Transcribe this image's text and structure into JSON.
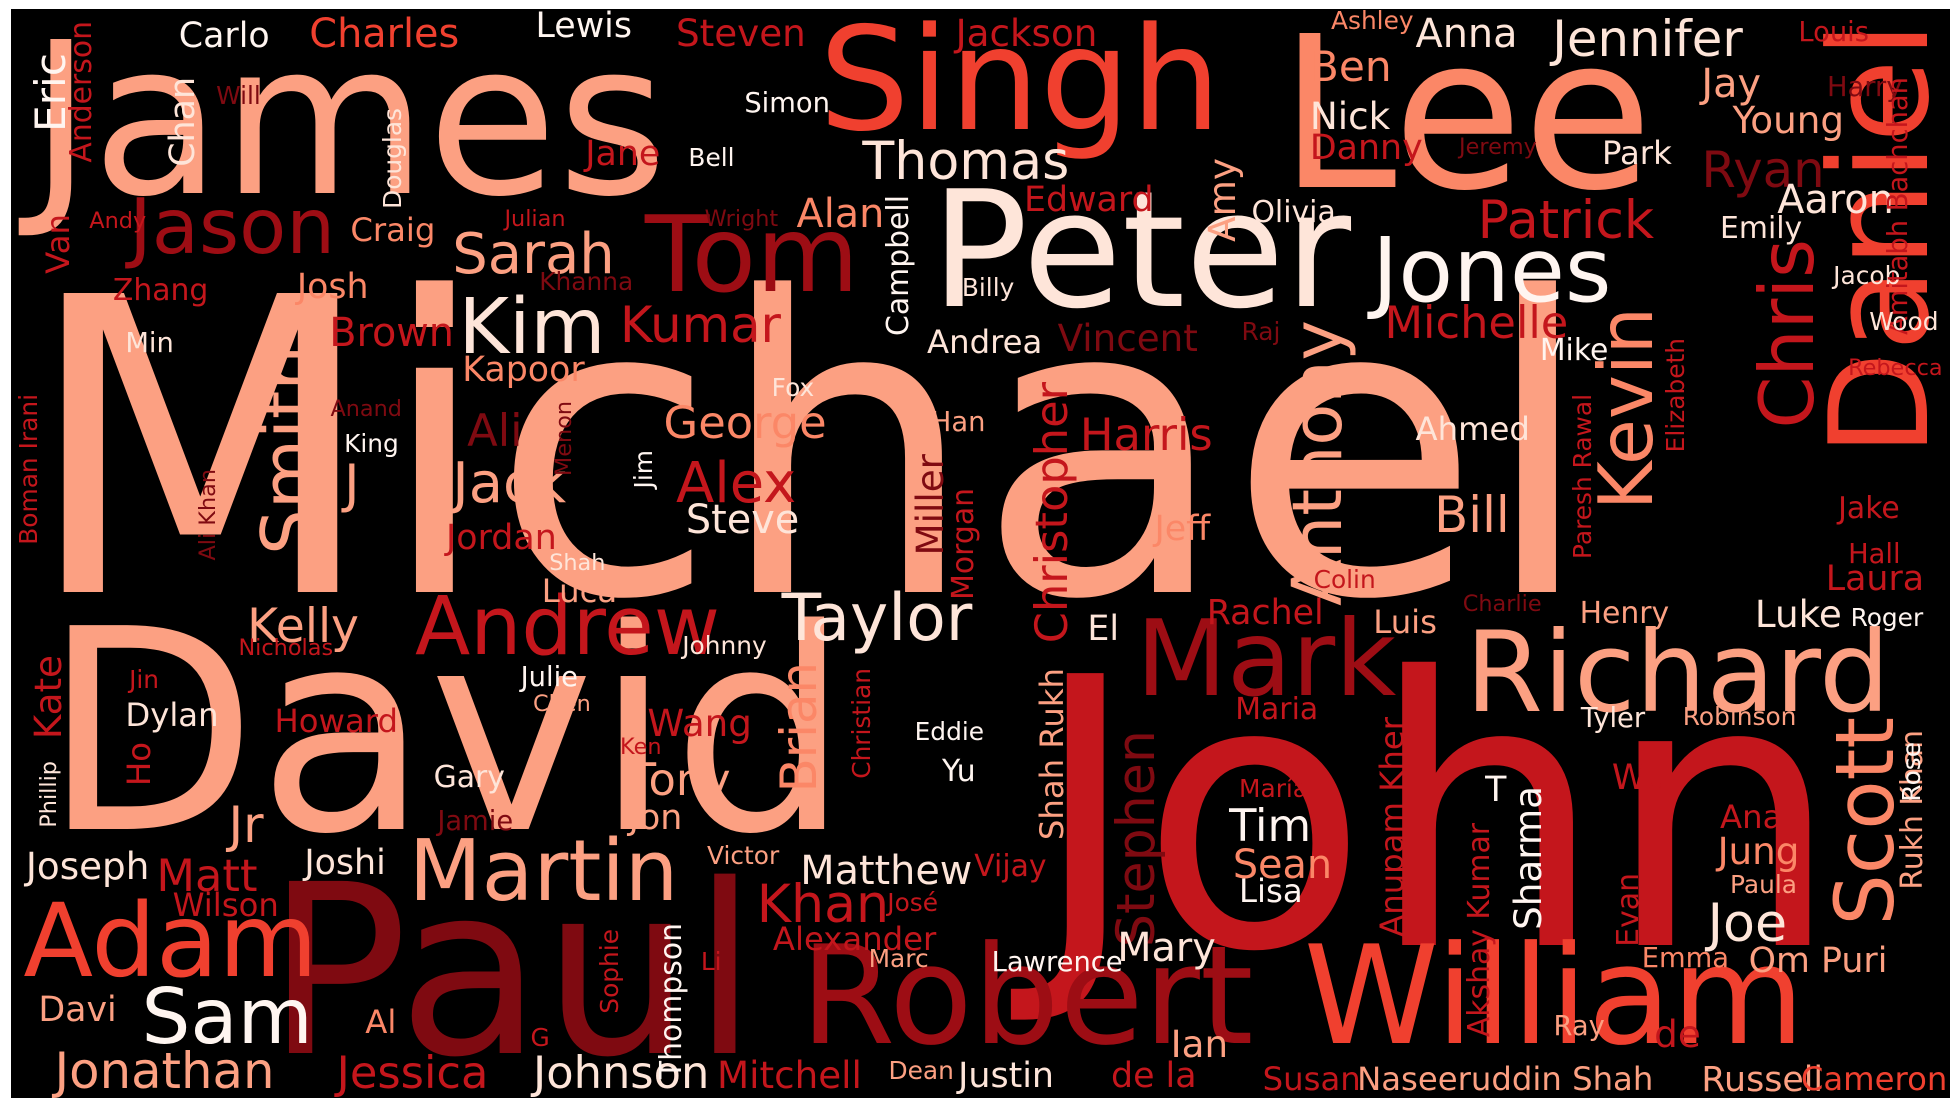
{
  "colors": {
    "background": "#000000",
    "light_salmon": "#fca082",
    "salmon": "#fb8767",
    "orange_red": "#f0402f",
    "crimson": "#c4161c",
    "dark_red": "#9d0d14",
    "deep_red": "#7f0a11",
    "pale": "#fee5d9",
    "white": "#fff5f0"
  },
  "words": [
    {
      "id": "michael",
      "text": "Michael"
    },
    {
      "id": "david",
      "text": "David"
    },
    {
      "id": "john",
      "text": "John"
    },
    {
      "id": "james",
      "text": "James"
    },
    {
      "id": "paul",
      "text": "Paul"
    },
    {
      "id": "lee",
      "text": "Lee"
    },
    {
      "id": "singh",
      "text": "Singh"
    },
    {
      "id": "peter",
      "text": "Peter"
    },
    {
      "id": "robert",
      "text": "Robert"
    },
    {
      "id": "william",
      "text": "William"
    },
    {
      "id": "daniel",
      "text": "Daniel"
    },
    {
      "id": "richard",
      "text": "Richard"
    },
    {
      "id": "mark",
      "text": "Mark"
    },
    {
      "id": "tom",
      "text": "Tom"
    },
    {
      "id": "jason",
      "text": "Jason"
    },
    {
      "id": "adam",
      "text": "Adam"
    },
    {
      "id": "andrew",
      "text": "Andrew"
    },
    {
      "id": "martin",
      "text": "Martin"
    },
    {
      "id": "jones",
      "text": "Jones"
    },
    {
      "id": "kevin",
      "text": "Kevin"
    },
    {
      "id": "chris",
      "text": "Chris"
    },
    {
      "id": "scott",
      "text": "Scott"
    },
    {
      "id": "smith",
      "text": "Smith"
    },
    {
      "id": "anthony",
      "text": "Anthony"
    },
    {
      "id": "taylor",
      "text": "Taylor"
    },
    {
      "id": "kim",
      "text": "Kim"
    },
    {
      "id": "jack",
      "text": "Jack"
    },
    {
      "id": "alex",
      "text": "Alex"
    },
    {
      "id": "sam",
      "text": "Sam"
    },
    {
      "id": "jennifer",
      "text": "Jennifer"
    },
    {
      "id": "patrick",
      "text": "Patrick"
    },
    {
      "id": "thomas",
      "text": "Thomas"
    },
    {
      "id": "sarah",
      "text": "Sarah"
    },
    {
      "id": "kumar",
      "text": "Kumar"
    },
    {
      "id": "khan",
      "text": "Khan"
    },
    {
      "id": "stephen",
      "text": "Stephen"
    },
    {
      "id": "christopher",
      "text": "Christopher"
    },
    {
      "id": "brian",
      "text": "Brian"
    },
    {
      "id": "jonathan",
      "text": "Jonathan"
    },
    {
      "id": "jessica",
      "text": "Jessica"
    },
    {
      "id": "johnson",
      "text": "Johnson"
    },
    {
      "id": "joe",
      "text": "Joe"
    },
    {
      "id": "bill",
      "text": "Bill"
    },
    {
      "id": "ryan",
      "text": "Ryan"
    },
    {
      "id": "michelle",
      "text": "Michelle"
    },
    {
      "id": "harris",
      "text": "Harris"
    },
    {
      "id": "george",
      "text": "George"
    },
    {
      "id": "kelly",
      "text": "Kelly"
    },
    {
      "id": "matthew",
      "text": "Matthew"
    },
    {
      "id": "charles",
      "text": "Charles"
    },
    {
      "id": "steven",
      "text": "Steven"
    },
    {
      "id": "jackson",
      "text": "Jackson"
    },
    {
      "id": "anna",
      "text": "Anna"
    },
    {
      "id": "ben",
      "text": "Ben"
    },
    {
      "id": "nick",
      "text": "Nick"
    },
    {
      "id": "danny",
      "text": "Danny"
    },
    {
      "id": "jane",
      "text": "Jane"
    },
    {
      "id": "carlo",
      "text": "Carlo"
    },
    {
      "id": "lewis",
      "text": "Lewis"
    },
    {
      "id": "eric",
      "text": "Eric"
    },
    {
      "id": "anderson",
      "text": "Anderson"
    },
    {
      "id": "chan",
      "text": "Chan"
    },
    {
      "id": "will",
      "text": "Will"
    },
    {
      "id": "simon",
      "text": "Simon"
    },
    {
      "id": "bell",
      "text": "Bell"
    },
    {
      "id": "douglas",
      "text": "Douglas"
    },
    {
      "id": "van",
      "text": "Van"
    },
    {
      "id": "andy",
      "text": "Andy"
    },
    {
      "id": "craig",
      "text": "Craig"
    },
    {
      "id": "julian",
      "text": "Julian"
    },
    {
      "id": "wright",
      "text": "Wright"
    },
    {
      "id": "alan",
      "text": "Alan"
    },
    {
      "id": "edward",
      "text": "Edward"
    },
    {
      "id": "amy",
      "text": "Amy"
    },
    {
      "id": "olivia",
      "text": "Olivia"
    },
    {
      "id": "campbell",
      "text": "Campbell"
    },
    {
      "id": "zhang",
      "text": "Zhang"
    },
    {
      "id": "josh",
      "text": "Josh"
    },
    {
      "id": "khanna",
      "text": "Khanna"
    },
    {
      "id": "billy",
      "text": "Billy"
    },
    {
      "id": "min",
      "text": "Min"
    },
    {
      "id": "brown",
      "text": "Brown"
    },
    {
      "id": "andrea",
      "text": "Andrea"
    },
    {
      "id": "vincent",
      "text": "Vincent"
    },
    {
      "id": "raj",
      "text": "Raj"
    },
    {
      "id": "kapoor",
      "text": "Kapoor"
    },
    {
      "id": "fox",
      "text": "Fox"
    },
    {
      "id": "mike",
      "text": "Mike"
    },
    {
      "id": "anand",
      "text": "Anand"
    },
    {
      "id": "menon",
      "text": "Menon"
    },
    {
      "id": "ali",
      "text": "Ali"
    },
    {
      "id": "han",
      "text": "Han"
    },
    {
      "id": "king",
      "text": "King"
    },
    {
      "id": "ahmed",
      "text": "Ahmed"
    },
    {
      "id": "boman_irani",
      "text": "Boman Irani"
    },
    {
      "id": "j",
      "text": "J"
    },
    {
      "id": "jim",
      "text": "Jim"
    },
    {
      "id": "steve",
      "text": "Steve"
    },
    {
      "id": "ali_khan",
      "text": "Ali Khan"
    },
    {
      "id": "jordan",
      "text": "Jordan"
    },
    {
      "id": "miller",
      "text": "Miller"
    },
    {
      "id": "morgan",
      "text": "Morgan"
    },
    {
      "id": "jeff",
      "text": "Jeff"
    },
    {
      "id": "paresh_rawal",
      "text": "Paresh Rawal"
    },
    {
      "id": "elizabeth",
      "text": "Elizabeth"
    },
    {
      "id": "shah",
      "text": "Shah"
    },
    {
      "id": "luca",
      "text": "Luca"
    },
    {
      "id": "colin",
      "text": "Colin"
    },
    {
      "id": "el",
      "text": "El"
    },
    {
      "id": "rachel",
      "text": "Rachel"
    },
    {
      "id": "luis",
      "text": "Luis"
    },
    {
      "id": "charlie",
      "text": "Charlie"
    },
    {
      "id": "henry",
      "text": "Henry"
    },
    {
      "id": "luke",
      "text": "Luke"
    },
    {
      "id": "roger",
      "text": "Roger"
    },
    {
      "id": "laura",
      "text": "Laura"
    },
    {
      "id": "nicholas",
      "text": "Nicholas"
    },
    {
      "id": "johnny",
      "text": "Johnny"
    },
    {
      "id": "kate",
      "text": "Kate"
    },
    {
      "id": "jin",
      "text": "Jin"
    },
    {
      "id": "julie",
      "text": "Julie"
    },
    {
      "id": "chen",
      "text": "Chen"
    },
    {
      "id": "dylan",
      "text": "Dylan"
    },
    {
      "id": "howard",
      "text": "Howard"
    },
    {
      "id": "wang",
      "text": "Wang"
    },
    {
      "id": "ken",
      "text": "Ken"
    },
    {
      "id": "christian",
      "text": "Christian"
    },
    {
      "id": "eddie",
      "text": "Eddie"
    },
    {
      "id": "yu",
      "text": "Yu"
    },
    {
      "id": "shah_rukh",
      "text": "Shah Rukh"
    },
    {
      "id": "maria",
      "text": "Maria"
    },
    {
      "id": "maria_accent",
      "text": "María"
    },
    {
      "id": "anupam_kher",
      "text": "Anupam Kher"
    },
    {
      "id": "tyler",
      "text": "Tyler"
    },
    {
      "id": "robinson",
      "text": "Robinson"
    },
    {
      "id": "ho",
      "text": "Ho"
    },
    {
      "id": "gary",
      "text": "Gary"
    },
    {
      "id": "phillip",
      "text": "Phillip"
    },
    {
      "id": "tony",
      "text": "Tony"
    },
    {
      "id": "jon",
      "text": "Jon"
    },
    {
      "id": "jamie",
      "text": "Jamie"
    },
    {
      "id": "jr",
      "text": "Jr"
    },
    {
      "id": "joseph",
      "text": "Joseph"
    },
    {
      "id": "joshi",
      "text": "Joshi"
    },
    {
      "id": "matt",
      "text": "Matt"
    },
    {
      "id": "victor",
      "text": "Victor"
    },
    {
      "id": "vijay",
      "text": "Vijay"
    },
    {
      "id": "jose",
      "text": "José"
    },
    {
      "id": "wilson",
      "text": "Wilson"
    },
    {
      "id": "t",
      "text": "T"
    },
    {
      "id": "tim",
      "text": "Tim"
    },
    {
      "id": "sean",
      "text": "Sean"
    },
    {
      "id": "lisa",
      "text": "Lisa"
    },
    {
      "id": "sharma",
      "text": "Sharma"
    },
    {
      "id": "akshay_kumar",
      "text": "Akshay Kumar"
    },
    {
      "id": "evan",
      "text": "Evan"
    },
    {
      "id": "wu",
      "text": "Wu"
    },
    {
      "id": "ana",
      "text": "Ana"
    },
    {
      "id": "jung",
      "text": "Jung"
    },
    {
      "id": "paula",
      "text": "Paula"
    },
    {
      "id": "rukh_khan",
      "text": "Rukh Khan"
    },
    {
      "id": "rose",
      "text": "Rose"
    },
    {
      "id": "alexander",
      "text": "Alexander"
    },
    {
      "id": "marc",
      "text": "Marc"
    },
    {
      "id": "mary",
      "text": "Mary"
    },
    {
      "id": "lawrence",
      "text": "Lawrence"
    },
    {
      "id": "sophie",
      "text": "Sophie"
    },
    {
      "id": "thompson",
      "text": "Thompson"
    },
    {
      "id": "li",
      "text": "Li"
    },
    {
      "id": "emma",
      "text": "Emma"
    },
    {
      "id": "om_puri",
      "text": "Om Puri"
    },
    {
      "id": "davi",
      "text": "Davi"
    },
    {
      "id": "al",
      "text": "Al"
    },
    {
      "id": "g",
      "text": "G"
    },
    {
      "id": "ian",
      "text": "Ian"
    },
    {
      "id": "ray",
      "text": "Ray"
    },
    {
      "id": "de",
      "text": "de"
    },
    {
      "id": "mitchell",
      "text": "Mitchell"
    },
    {
      "id": "dean",
      "text": "Dean"
    },
    {
      "id": "justin",
      "text": "Justin"
    },
    {
      "id": "de_la",
      "text": "de la"
    },
    {
      "id": "susan",
      "text": "Susan"
    },
    {
      "id": "naseeruddin_shah",
      "text": "Naseeruddin Shah"
    },
    {
      "id": "russell",
      "text": "Russell"
    },
    {
      "id": "cameron",
      "text": "Cameron"
    },
    {
      "id": "ashley",
      "text": "Ashley"
    },
    {
      "id": "louis",
      "text": "Louis"
    },
    {
      "id": "harry",
      "text": "Harry"
    },
    {
      "id": "jay",
      "text": "Jay"
    },
    {
      "id": "young",
      "text": "Young"
    },
    {
      "id": "jeremy",
      "text": "Jeremy"
    },
    {
      "id": "park",
      "text": "Park"
    },
    {
      "id": "aaron",
      "text": "Aaron"
    },
    {
      "id": "emily",
      "text": "Emily"
    },
    {
      "id": "jacob",
      "text": "Jacob"
    },
    {
      "id": "amitabh_bachchan",
      "text": "Amitabh Bachchan"
    },
    {
      "id": "wood",
      "text": "Wood"
    },
    {
      "id": "rebecca",
      "text": "Rebecca"
    },
    {
      "id": "jake",
      "text": "Jake"
    },
    {
      "id": "hall",
      "text": "Hall"
    }
  ]
}
